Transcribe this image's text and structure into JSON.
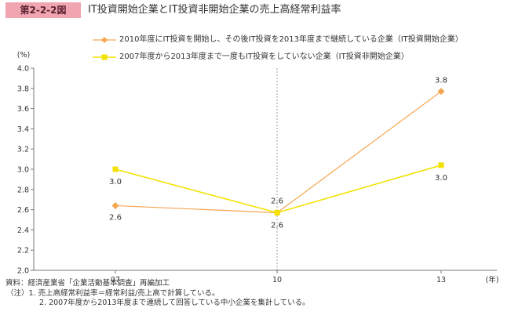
{
  "header": {
    "figure_label": "第2-2-2図",
    "title": "IT投資開始企業とIT投資非開始企業の売上高経常利益率"
  },
  "colors": {
    "orange": "#f5a64f",
    "yellow": "#f2e200"
  },
  "chart_data": {
    "type": "line",
    "yunit": "(%)",
    "xunit": "(年)",
    "categories": [
      "07",
      "10",
      "13"
    ],
    "ylim": [
      2.0,
      4.0
    ],
    "yticks": [
      "2.0",
      "2.2",
      "2.4",
      "2.6",
      "2.8",
      "3.0",
      "3.2",
      "3.4",
      "3.6",
      "3.8",
      "4.0"
    ],
    "legend_placement": "top",
    "series": [
      {
        "name": "2010年度にIT投資を開始し、その後IT投資を2013年度まで継続している企業（IT投資開始企業）",
        "marker": "diamond",
        "color": "#f5a64f",
        "values": [
          2.64,
          2.57,
          3.77
        ],
        "labels": [
          "2.6",
          "2.6",
          "3.8"
        ]
      },
      {
        "name": "2007年度から2013年度まで一度もIT投資をしていない企業（IT投資非開始企業）",
        "marker": "square",
        "color": "#f2e200",
        "values": [
          3.0,
          2.57,
          3.04
        ],
        "labels": [
          "3.0",
          "2.6",
          "3.0"
        ]
      }
    ]
  },
  "notes": {
    "source": "資料：経済産業省「企業活動基本調査」再編加工",
    "note1": "（注）1. 売上高経常利益率＝経常利益/売上高で計算している。",
    "note2": "2. 2007年度から2013年度まで連続して回答している中小企業を集計している。"
  }
}
